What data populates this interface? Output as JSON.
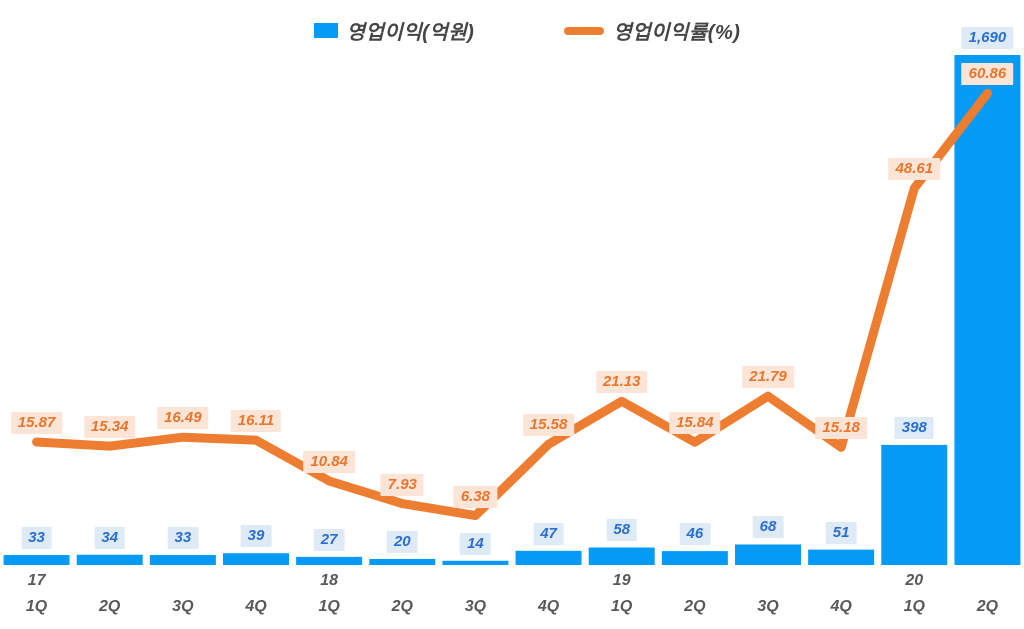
{
  "legend": {
    "bar": {
      "label": "영업이익(억원)"
    },
    "line": {
      "label": "영업이익률(%)"
    }
  },
  "chart_data": {
    "type": "bar",
    "combo": "bar+line",
    "title": "",
    "xlabel": "",
    "ylabel": "",
    "grid": false,
    "axes_visible": false,
    "legend_position": "top-center",
    "categories": [
      {
        "year": "17",
        "quarter": "1Q"
      },
      {
        "year": "",
        "quarter": "2Q"
      },
      {
        "year": "",
        "quarter": "3Q"
      },
      {
        "year": "",
        "quarter": "4Q"
      },
      {
        "year": "18",
        "quarter": "1Q"
      },
      {
        "year": "",
        "quarter": "2Q"
      },
      {
        "year": "",
        "quarter": "3Q"
      },
      {
        "year": "",
        "quarter": "4Q"
      },
      {
        "year": "19",
        "quarter": "1Q"
      },
      {
        "year": "",
        "quarter": "2Q"
      },
      {
        "year": "",
        "quarter": "3Q"
      },
      {
        "year": "",
        "quarter": "4Q"
      },
      {
        "year": "20",
        "quarter": "1Q"
      },
      {
        "year": "",
        "quarter": "2Q"
      }
    ],
    "series": [
      {
        "name": "영업이익(억원)",
        "type": "bar",
        "values": [
          33,
          34,
          33,
          39,
          27,
          20,
          14,
          47,
          58,
          46,
          68,
          51,
          398,
          1690
        ],
        "labels": [
          "33",
          "34",
          "33",
          "39",
          "27",
          "20",
          "14",
          "47",
          "58",
          "46",
          "68",
          "51",
          "398",
          "1,690"
        ]
      },
      {
        "name": "영업이익률(%)",
        "type": "line",
        "values": [
          15.87,
          15.34,
          16.49,
          16.11,
          10.84,
          7.93,
          6.38,
          15.58,
          21.13,
          15.84,
          21.79,
          15.18,
          48.61,
          60.86
        ],
        "labels": [
          "15.87",
          "15.34",
          "16.49",
          "16.11",
          "10.84",
          "7.93",
          "6.38",
          "15.58",
          "21.13",
          "15.84",
          "21.79",
          "15.18",
          "48.61",
          "60.86"
        ]
      }
    ],
    "bar_axis_max": 1690
  },
  "colors": {
    "bar": "#059BF5",
    "line": "#ED7D31",
    "bar_label_text": "#2A6FD0",
    "bar_label_bg": "#DEEAF6",
    "line_label_text": "#E8762B",
    "line_label_bg": "#FCE4D6",
    "axis_text": "#595959",
    "legend_text": "#454545"
  }
}
